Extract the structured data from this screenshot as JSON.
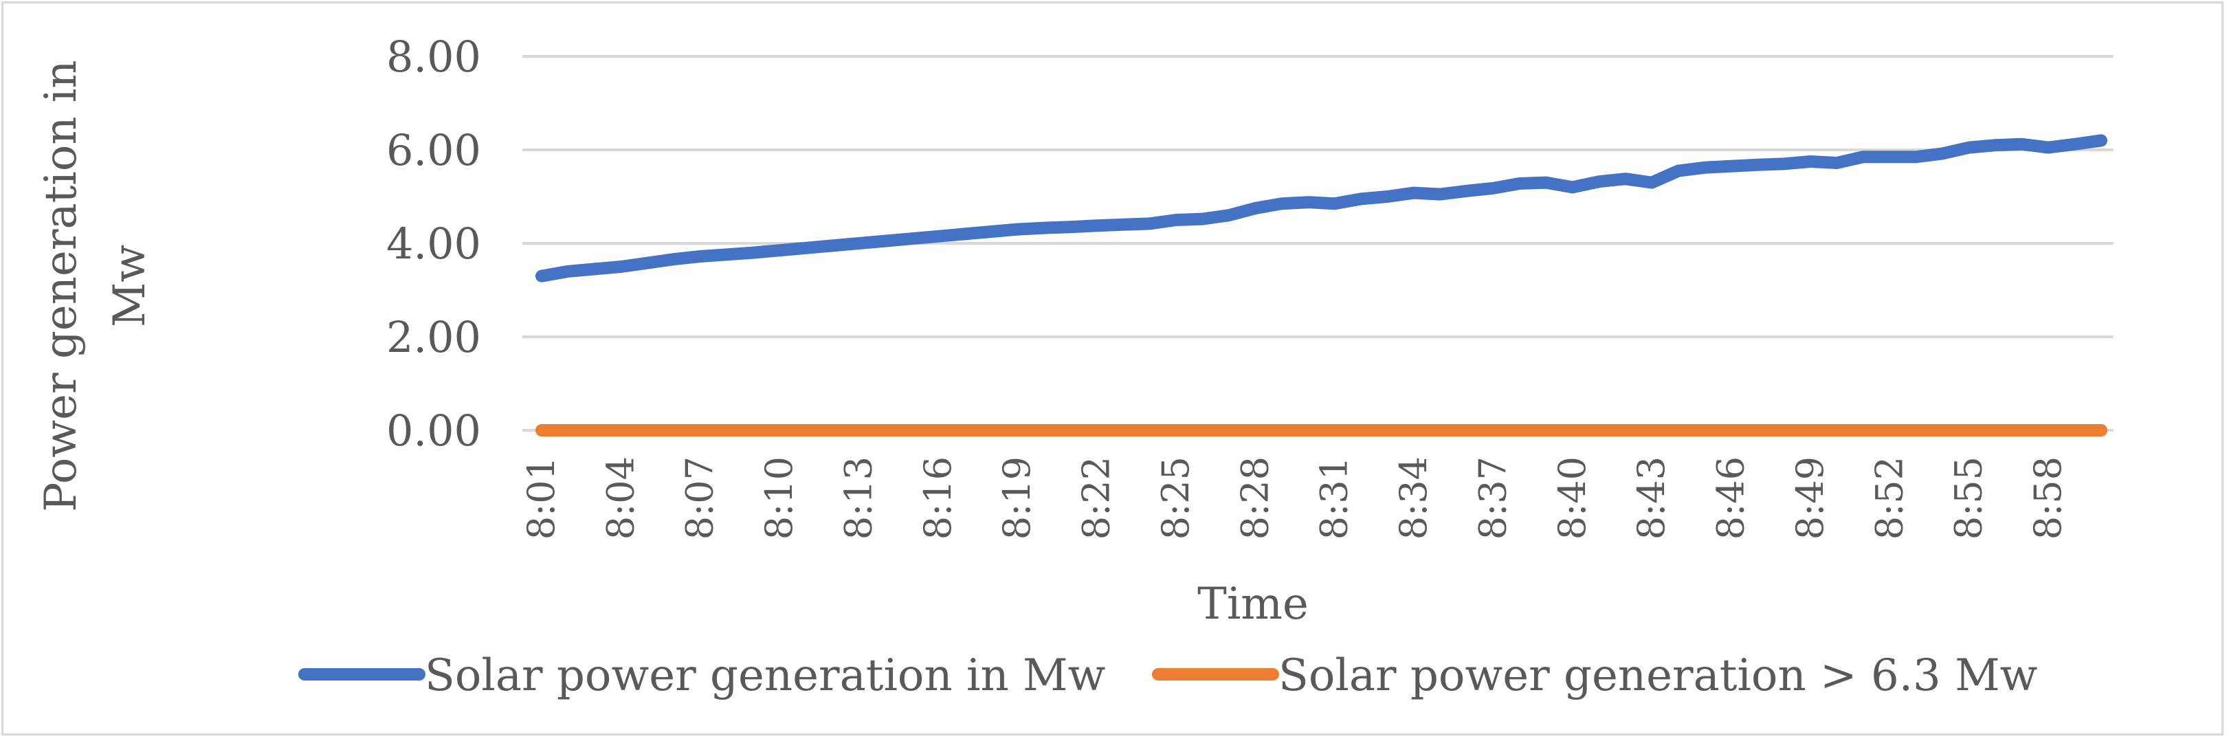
{
  "chart_data": {
    "type": "line",
    "title": "",
    "xlabel": "Time",
    "ylabel_lines": [
      "Power generation in",
      "Mw"
    ],
    "ylim": [
      0,
      8
    ],
    "yticks": [
      "0.00",
      "2.00",
      "4.00",
      "6.00",
      "8.00"
    ],
    "ytick_values": [
      0,
      2,
      4,
      6,
      8
    ],
    "x": [
      "8:01",
      "8:02",
      "8:03",
      "8:04",
      "8:05",
      "8:06",
      "8:07",
      "8:08",
      "8:09",
      "8:10",
      "8:11",
      "8:12",
      "8:13",
      "8:14",
      "8:15",
      "8:16",
      "8:17",
      "8:18",
      "8:19",
      "8:20",
      "8:21",
      "8:22",
      "8:23",
      "8:24",
      "8:25",
      "8:26",
      "8:27",
      "8:28",
      "8:29",
      "8:30",
      "8:31",
      "8:32",
      "8:33",
      "8:34",
      "8:35",
      "8:36",
      "8:37",
      "8:38",
      "8:39",
      "8:40",
      "8:41",
      "8:42",
      "8:43",
      "8:44",
      "8:45",
      "8:46",
      "8:47",
      "8:48",
      "8:49",
      "8:50",
      "8:51",
      "8:52",
      "8:53",
      "8:54",
      "8:55",
      "8:56",
      "8:57",
      "8:58",
      "8:59",
      "9:00"
    ],
    "xtick_labels": [
      "8:01",
      "8:04",
      "8:07",
      "8:10",
      "8:13",
      "8:16",
      "8:19",
      "8:22",
      "8:25",
      "8:28",
      "8:31",
      "8:34",
      "8:37",
      "8:40",
      "8:43",
      "8:46",
      "8:49",
      "8:52",
      "8:55",
      "8:58"
    ],
    "series": [
      {
        "name": "Solar power generation in Mw",
        "color": "#4472c4",
        "values": [
          3.3,
          3.4,
          3.45,
          3.5,
          3.58,
          3.66,
          3.72,
          3.76,
          3.8,
          3.85,
          3.9,
          3.95,
          4.0,
          4.05,
          4.1,
          4.15,
          4.2,
          4.25,
          4.3,
          4.33,
          4.35,
          4.38,
          4.4,
          4.42,
          4.5,
          4.52,
          4.6,
          4.75,
          4.85,
          4.88,
          4.85,
          4.95,
          5.0,
          5.08,
          5.05,
          5.12,
          5.18,
          5.28,
          5.3,
          5.2,
          5.32,
          5.38,
          5.3,
          5.55,
          5.62,
          5.65,
          5.68,
          5.7,
          5.75,
          5.72,
          5.85,
          5.85,
          5.85,
          5.92,
          6.05,
          6.1,
          6.12,
          6.05,
          6.12,
          6.2
        ]
      },
      {
        "name": "Solar power generation > 6.3 Mw",
        "color": "#ed7d31",
        "values": [
          0,
          0,
          0,
          0,
          0,
          0,
          0,
          0,
          0,
          0,
          0,
          0,
          0,
          0,
          0,
          0,
          0,
          0,
          0,
          0,
          0,
          0,
          0,
          0,
          0,
          0,
          0,
          0,
          0,
          0,
          0,
          0,
          0,
          0,
          0,
          0,
          0,
          0,
          0,
          0,
          0,
          0,
          0,
          0,
          0,
          0,
          0,
          0,
          0,
          0,
          0,
          0,
          0,
          0,
          0,
          0,
          0,
          0,
          0,
          0
        ]
      }
    ],
    "grid": true,
    "legend_position": "bottom"
  }
}
